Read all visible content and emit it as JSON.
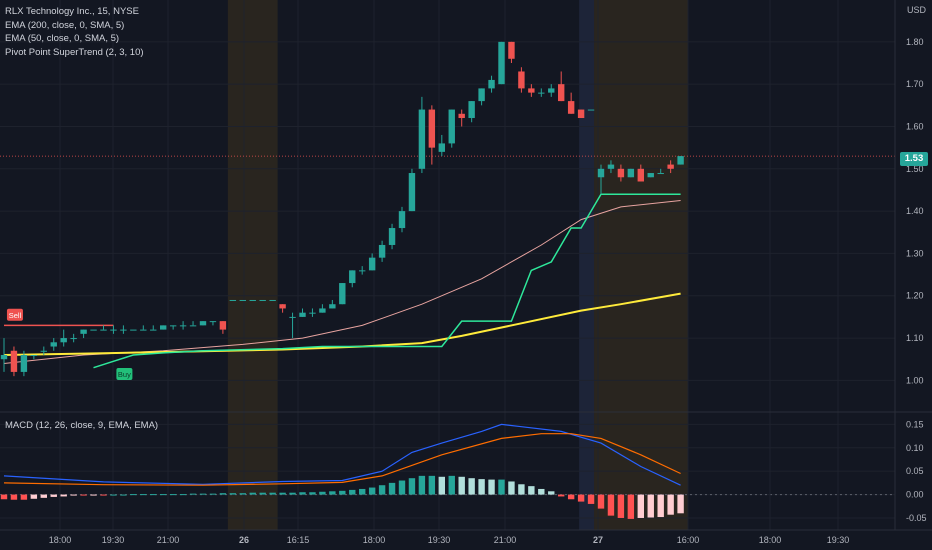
{
  "legend": {
    "symbol": "RLX Technology Inc., 15, NYSE",
    "ema200": "EMA (200, close, 0, SMA, 5)",
    "ema50": "EMA (50, close, 0, SMA, 5)",
    "supertrend": "Pivot Point SuperTrend (2, 3, 10)"
  },
  "macd_legend": "MACD (12, 26, close, 9, EMA, EMA)",
  "currency": "USD",
  "last_price": "1.53",
  "colors": {
    "up": "#26a69a",
    "down": "#ef5350",
    "ema200": "#ffeb3b",
    "ema50": "#e8a4a0",
    "supertrend": "#2ee89b",
    "macd_line": "#2962ff",
    "signal_line": "#ff6d00",
    "sell_label": "#ef5350",
    "buy_label": "#22c07a"
  },
  "chart_data": {
    "type": "candlestick",
    "time_labels": [
      "18:00",
      "19:30",
      "21:00",
      "26",
      "16:15",
      "18:00",
      "19:30",
      "21:00",
      "27",
      "16:00",
      "18:00",
      "19:30"
    ],
    "price_axis": {
      "ticks": [
        "1.80",
        "1.70",
        "1.60",
        "1.50",
        "1.40",
        "1.30",
        "1.20",
        "1.10",
        "1.00"
      ],
      "range": [
        0.93,
        1.88
      ]
    },
    "macd_axis": {
      "ticks": [
        "0.15",
        "0.10",
        "0.05",
        "0.00",
        "-0.05"
      ],
      "range": [
        -0.065,
        0.17
      ]
    },
    "candles": [
      {
        "o": 1.05,
        "h": 1.1,
        "l": 1.02,
        "c": 1.06
      },
      {
        "o": 1.07,
        "h": 1.08,
        "l": 1.01,
        "c": 1.02
      },
      {
        "o": 1.02,
        "h": 1.07,
        "l": 1.01,
        "c": 1.06
      },
      {
        "o": 1.06,
        "h": 1.06,
        "l": 1.05,
        "c": 1.06
      },
      {
        "o": 1.07,
        "h": 1.08,
        "l": 1.06,
        "c": 1.07
      },
      {
        "o": 1.08,
        "h": 1.1,
        "l": 1.07,
        "c": 1.09
      },
      {
        "o": 1.09,
        "h": 1.12,
        "l": 1.08,
        "c": 1.1
      },
      {
        "o": 1.1,
        "h": 1.11,
        "l": 1.09,
        "c": 1.1
      },
      {
        "o": 1.11,
        "h": 1.12,
        "l": 1.1,
        "c": 1.12
      },
      {
        "o": 1.12,
        "h": 1.12,
        "l": 1.12,
        "c": 1.12
      },
      {
        "o": 1.12,
        "h": 1.13,
        "l": 1.12,
        "c": 1.12
      },
      {
        "o": 1.12,
        "h": 1.13,
        "l": 1.11,
        "c": 1.12
      },
      {
        "o": 1.12,
        "h": 1.13,
        "l": 1.11,
        "c": 1.12
      },
      {
        "o": 1.12,
        "h": 1.12,
        "l": 1.12,
        "c": 1.12
      },
      {
        "o": 1.12,
        "h": 1.13,
        "l": 1.12,
        "c": 1.12
      },
      {
        "o": 1.12,
        "h": 1.13,
        "l": 1.12,
        "c": 1.12
      },
      {
        "o": 1.12,
        "h": 1.13,
        "l": 1.12,
        "c": 1.13
      },
      {
        "o": 1.13,
        "h": 1.13,
        "l": 1.12,
        "c": 1.13
      },
      {
        "o": 1.13,
        "h": 1.14,
        "l": 1.12,
        "c": 1.13
      },
      {
        "o": 1.13,
        "h": 1.14,
        "l": 1.13,
        "c": 1.13
      },
      {
        "o": 1.13,
        "h": 1.14,
        "l": 1.13,
        "c": 1.14
      },
      {
        "o": 1.14,
        "h": 1.14,
        "l": 1.13,
        "c": 1.14
      },
      {
        "o": 1.14,
        "h": 1.14,
        "l": 1.11,
        "c": 1.12
      },
      {
        "o": 1.19,
        "h": 1.19,
        "l": 1.19,
        "c": 1.19
      },
      {
        "o": 1.19,
        "h": 1.19,
        "l": 1.19,
        "c": 1.19
      },
      {
        "o": 1.19,
        "h": 1.19,
        "l": 1.19,
        "c": 1.19
      },
      {
        "o": 1.19,
        "h": 1.19,
        "l": 1.19,
        "c": 1.19
      },
      {
        "o": 1.19,
        "h": 1.19,
        "l": 1.19,
        "c": 1.19
      },
      {
        "o": 1.18,
        "h": 1.18,
        "l": 1.16,
        "c": 1.17
      },
      {
        "o": 1.15,
        "h": 1.16,
        "l": 1.1,
        "c": 1.15
      },
      {
        "o": 1.15,
        "h": 1.17,
        "l": 1.15,
        "c": 1.16
      },
      {
        "o": 1.16,
        "h": 1.17,
        "l": 1.15,
        "c": 1.16
      },
      {
        "o": 1.16,
        "h": 1.18,
        "l": 1.16,
        "c": 1.17
      },
      {
        "o": 1.17,
        "h": 1.19,
        "l": 1.17,
        "c": 1.18
      },
      {
        "o": 1.18,
        "h": 1.23,
        "l": 1.18,
        "c": 1.23
      },
      {
        "o": 1.23,
        "h": 1.26,
        "l": 1.22,
        "c": 1.26
      },
      {
        "o": 1.26,
        "h": 1.27,
        "l": 1.25,
        "c": 1.26
      },
      {
        "o": 1.26,
        "h": 1.3,
        "l": 1.26,
        "c": 1.29
      },
      {
        "o": 1.29,
        "h": 1.33,
        "l": 1.28,
        "c": 1.32
      },
      {
        "o": 1.32,
        "h": 1.37,
        "l": 1.31,
        "c": 1.36
      },
      {
        "o": 1.36,
        "h": 1.41,
        "l": 1.35,
        "c": 1.4
      },
      {
        "o": 1.4,
        "h": 1.5,
        "l": 1.4,
        "c": 1.49
      },
      {
        "o": 1.5,
        "h": 1.67,
        "l": 1.49,
        "c": 1.64
      },
      {
        "o": 1.64,
        "h": 1.65,
        "l": 1.51,
        "c": 1.55
      },
      {
        "o": 1.54,
        "h": 1.58,
        "l": 1.53,
        "c": 1.56
      },
      {
        "o": 1.56,
        "h": 1.64,
        "l": 1.55,
        "c": 1.64
      },
      {
        "o": 1.63,
        "h": 1.64,
        "l": 1.6,
        "c": 1.62
      },
      {
        "o": 1.62,
        "h": 1.66,
        "l": 1.61,
        "c": 1.66
      },
      {
        "o": 1.66,
        "h": 1.69,
        "l": 1.65,
        "c": 1.69
      },
      {
        "o": 1.69,
        "h": 1.72,
        "l": 1.68,
        "c": 1.71
      },
      {
        "o": 1.7,
        "h": 1.8,
        "l": 1.7,
        "c": 1.8
      },
      {
        "o": 1.8,
        "h": 1.8,
        "l": 1.75,
        "c": 1.76
      },
      {
        "o": 1.73,
        "h": 1.74,
        "l": 1.68,
        "c": 1.69
      },
      {
        "o": 1.69,
        "h": 1.7,
        "l": 1.67,
        "c": 1.68
      },
      {
        "o": 1.68,
        "h": 1.69,
        "l": 1.67,
        "c": 1.68
      },
      {
        "o": 1.68,
        "h": 1.7,
        "l": 1.67,
        "c": 1.69
      },
      {
        "o": 1.7,
        "h": 1.73,
        "l": 1.66,
        "c": 1.66
      },
      {
        "o": 1.66,
        "h": 1.68,
        "l": 1.63,
        "c": 1.63
      },
      {
        "o": 1.64,
        "h": 1.64,
        "l": 1.62,
        "c": 1.62
      },
      {
        "o": 1.64,
        "h": 1.64,
        "l": 1.64,
        "c": 1.64
      },
      {
        "o": 1.48,
        "h": 1.51,
        "l": 1.44,
        "c": 1.5
      },
      {
        "o": 1.5,
        "h": 1.52,
        "l": 1.49,
        "c": 1.51
      },
      {
        "o": 1.5,
        "h": 1.51,
        "l": 1.47,
        "c": 1.48
      },
      {
        "o": 1.48,
        "h": 1.5,
        "l": 1.48,
        "c": 1.5
      },
      {
        "o": 1.5,
        "h": 1.51,
        "l": 1.47,
        "c": 1.47
      },
      {
        "o": 1.48,
        "h": 1.49,
        "l": 1.48,
        "c": 1.49
      },
      {
        "o": 1.49,
        "h": 1.5,
        "l": 1.49,
        "c": 1.49
      },
      {
        "o": 1.51,
        "h": 1.52,
        "l": 1.49,
        "c": 1.5
      },
      {
        "o": 1.51,
        "h": 1.53,
        "l": 1.51,
        "c": 1.53
      }
    ],
    "ema200": [
      [
        0,
        1.06
      ],
      [
        10,
        1.064
      ],
      [
        20,
        1.069
      ],
      [
        28,
        1.073
      ],
      [
        36,
        1.08
      ],
      [
        42,
        1.088
      ],
      [
        46,
        1.105
      ],
      [
        52,
        1.135
      ],
      [
        58,
        1.165
      ],
      [
        62,
        1.18
      ],
      [
        68,
        1.205
      ]
    ],
    "ema50": [
      [
        0,
        1.04
      ],
      [
        8,
        1.06
      ],
      [
        16,
        1.07
      ],
      [
        24,
        1.085
      ],
      [
        30,
        1.1
      ],
      [
        36,
        1.13
      ],
      [
        42,
        1.18
      ],
      [
        48,
        1.24
      ],
      [
        54,
        1.32
      ],
      [
        58,
        1.38
      ],
      [
        62,
        1.41
      ],
      [
        68,
        1.425
      ]
    ],
    "supertrend": [
      [
        9,
        1.03
      ],
      [
        11,
        1.045
      ],
      [
        13,
        1.06
      ],
      [
        16,
        1.065
      ],
      [
        20,
        1.07
      ],
      [
        28,
        1.075
      ],
      [
        32,
        1.08
      ],
      [
        37,
        1.08
      ],
      [
        40,
        1.08
      ],
      [
        44,
        1.08
      ],
      [
        46,
        1.14
      ],
      [
        51,
        1.14
      ],
      [
        53,
        1.26
      ],
      [
        55,
        1.28
      ],
      [
        57,
        1.36
      ],
      [
        58,
        1.36
      ],
      [
        60,
        1.44
      ],
      [
        68,
        1.44
      ]
    ],
    "sell_line": {
      "y": 1.13,
      "from": 0,
      "to": 11
    },
    "signals": [
      {
        "type": "Sell",
        "i": 1,
        "price": 1.155
      },
      {
        "type": "Buy",
        "i": 12,
        "price": 1.015
      }
    ],
    "macd_hist": [
      -0.01,
      -0.011,
      -0.011,
      -0.009,
      -0.007,
      -0.005,
      -0.004,
      -0.002,
      -0.002,
      -0.001,
      -0.001,
      0,
      0,
      0.001,
      0.001,
      0.001,
      0.001,
      0.001,
      0.001,
      0.002,
      0.002,
      0.002,
      0.003,
      0.003,
      0.003,
      0.004,
      0.004,
      0.004,
      0.004,
      0.004,
      0.005,
      0.005,
      0.006,
      0.007,
      0.008,
      0.01,
      0.012,
      0.015,
      0.02,
      0.025,
      0.03,
      0.035,
      0.04,
      0.04,
      0.038,
      0.04,
      0.038,
      0.035,
      0.033,
      0.032,
      0.032,
      0.028,
      0.022,
      0.018,
      0.012,
      0.007,
      -0.004,
      -0.01,
      -0.015,
      -0.02,
      -0.03,
      -0.045,
      -0.05,
      -0.052,
      -0.05,
      -0.049,
      -0.048,
      -0.043,
      -0.04
    ],
    "macd_line": [
      [
        0,
        0.04
      ],
      [
        10,
        0.027
      ],
      [
        20,
        0.022
      ],
      [
        28,
        0.028
      ],
      [
        34,
        0.03
      ],
      [
        38,
        0.05
      ],
      [
        41,
        0.09
      ],
      [
        44,
        0.11
      ],
      [
        48,
        0.135
      ],
      [
        50,
        0.15
      ],
      [
        52,
        0.145
      ],
      [
        56,
        0.135
      ],
      [
        60,
        0.11
      ],
      [
        64,
        0.06
      ],
      [
        68,
        0.02
      ]
    ],
    "signal_line": [
      [
        0,
        0.025
      ],
      [
        10,
        0.021
      ],
      [
        20,
        0.02
      ],
      [
        28,
        0.023
      ],
      [
        34,
        0.026
      ],
      [
        38,
        0.04
      ],
      [
        44,
        0.085
      ],
      [
        50,
        0.12
      ],
      [
        54,
        0.13
      ],
      [
        57,
        0.13
      ],
      [
        60,
        0.12
      ],
      [
        64,
        0.085
      ],
      [
        68,
        0.045
      ]
    ],
    "session_bands": [
      {
        "from": 22.5,
        "to": 27.5
      },
      {
        "from": 59.3,
        "to": 68.7
      }
    ],
    "premarket_band": {
      "from": 57.8,
      "to": 59.3
    }
  }
}
